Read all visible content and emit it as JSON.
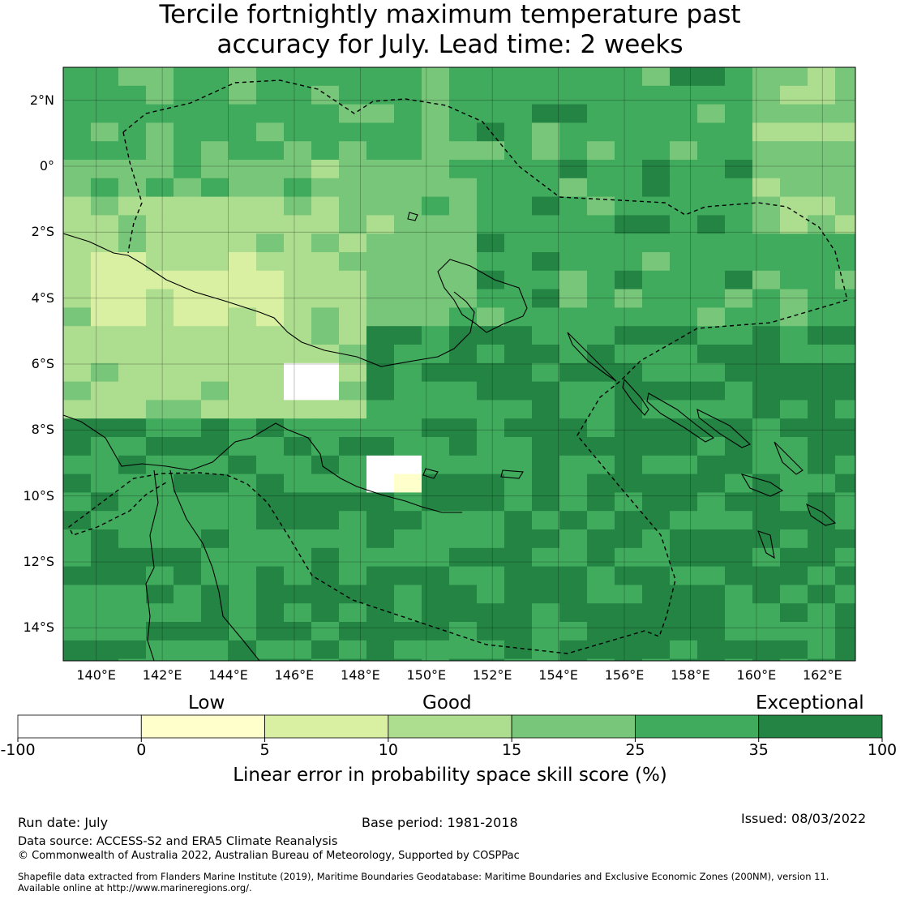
{
  "title": {
    "line1": "Tercile fortnightly maximum temperature past",
    "line2": "accuracy for July. Lead time: 2 weeks"
  },
  "map": {
    "lat_labels": [
      "2°N",
      "0°",
      "2°S",
      "4°S",
      "6°S",
      "8°S",
      "10°S",
      "12°S",
      "14°S"
    ],
    "lat_values": [
      2,
      0,
      -2,
      -4,
      -6,
      -8,
      -10,
      -12,
      -14
    ],
    "lon_labels": [
      "140°E",
      "142°E",
      "144°E",
      "146°E",
      "148°E",
      "150°E",
      "152°E",
      "154°E",
      "156°E",
      "158°E",
      "160°E",
      "162°E"
    ],
    "lon_values": [
      140,
      142,
      144,
      146,
      148,
      150,
      152,
      154,
      156,
      158,
      160,
      162
    ],
    "lon_range": [
      139,
      163
    ],
    "lat_range": [
      -15,
      3
    ],
    "grid": true,
    "cell_size_deg": [
      0.83,
      0.55
    ]
  },
  "colorbar": {
    "categories": [
      "Low",
      "Good",
      "Exceptional"
    ],
    "ticks": [
      "-100",
      "0",
      "5",
      "10",
      "15",
      "25",
      "35",
      "100"
    ],
    "colors": [
      "#ffffff",
      "#ffffcc",
      "#d9f0a3",
      "#addd8e",
      "#78c679",
      "#41ab5d",
      "#238443"
    ],
    "label": "Linear error in probability space skill score (%)"
  },
  "footer": {
    "run_date": "Run date: July",
    "base_period": "Base period: 1981-2018",
    "issued": "Issued: 08/03/2022",
    "data_source": "Data source: ACCESS-S2 and ERA5 Climate Reanalysis",
    "copyright": "© Commonwealth of Australia 2022, Australian Bureau of Meteorology, Supported by COSPPac",
    "shapefile_line1": "Shapefile data extracted from Flanders Marine Institute (2019), Maritime Boundaries Geodatabase: Maritime Boundaries and Exclusive Economic Zones (200NM), version 11.",
    "shapefile_line2": "Available online at http://www.marineregions.org/."
  }
}
